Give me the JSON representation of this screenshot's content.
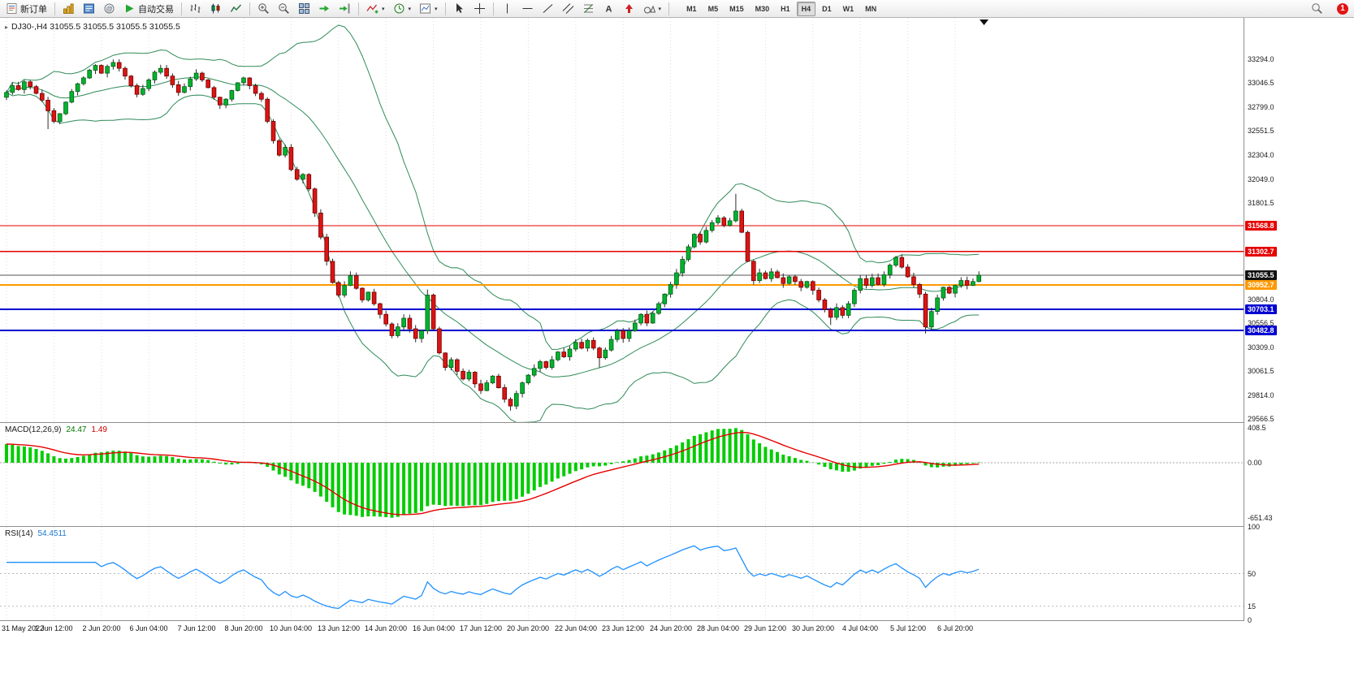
{
  "toolbar": {
    "new_order_label": "新订单",
    "auto_trading_label": "自动交易",
    "timeframes": [
      "M1",
      "M5",
      "M15",
      "M30",
      "H1",
      "H4",
      "D1",
      "W1",
      "MN"
    ],
    "active_timeframe": "H4",
    "notification_count": "1"
  },
  "chart": {
    "title_text": "DJ30-,H4 31055.5 31055.5 31055.5 31055.5",
    "price_axis_labels": [
      "33294.0",
      "33046.5",
      "32799.0",
      "32551.5",
      "32304.0",
      "32049.0",
      "31801.5",
      "30804.0",
      "30556.5",
      "30309.0",
      "30061.5",
      "29814.0",
      "29566.5"
    ],
    "h_lines": [
      {
        "price": 31568.8,
        "label": "31568.8",
        "type": "red",
        "width": 1.4
      },
      {
        "price": 31302.7,
        "label": "31302.7",
        "type": "red",
        "width": 1.4
      },
      {
        "price": 31055.5,
        "label": "31055.5",
        "type": "current",
        "width": 1
      },
      {
        "price": 30952.7,
        "label": "30952.7",
        "type": "orange",
        "width": 2
      },
      {
        "price": 30703.1,
        "label": "30703.1",
        "type": "blue",
        "width": 2
      },
      {
        "price": 30482.8,
        "label": "30482.8",
        "type": "blue",
        "width": 2
      }
    ],
    "time_axis": [
      {
        "bar": 0,
        "label": "31 May 2022"
      },
      {
        "bar": 8,
        "label": "1 Jun 12:00"
      },
      {
        "bar": 16,
        "label": "2 Jun 20:00"
      },
      {
        "bar": 24,
        "label": "6 Jun 04:00"
      },
      {
        "bar": 32,
        "label": "7 Jun 12:00"
      },
      {
        "bar": 40,
        "label": "8 Jun 20:00"
      },
      {
        "bar": 48,
        "label": "10 Jun 04:00"
      },
      {
        "bar": 56,
        "label": "13 Jun 12:00"
      },
      {
        "bar": 64,
        "label": "14 Jun 20:00"
      },
      {
        "bar": 72,
        "label": "16 Jun 04:00"
      },
      {
        "bar": 80,
        "label": "17 Jun 12:00"
      },
      {
        "bar": 88,
        "label": "20 Jun 20:00"
      },
      {
        "bar": 96,
        "label": "22 Jun 04:00"
      },
      {
        "bar": 104,
        "label": "23 Jun 12:00"
      },
      {
        "bar": 112,
        "label": "24 Jun 20:00"
      },
      {
        "bar": 120,
        "label": "28 Jun 04:00"
      },
      {
        "bar": 128,
        "label": "29 Jun 12:00"
      },
      {
        "bar": 136,
        "label": "30 Jun 20:00"
      },
      {
        "bar": 144,
        "label": "4 Jul 04:00"
      },
      {
        "bar": 152,
        "label": "5 Jul 12:00"
      },
      {
        "bar": 160,
        "label": "6 Jul 20:00"
      }
    ],
    "candles": {
      "first_open": 32900,
      "closes": [
        32950,
        33020,
        32980,
        33060,
        33010,
        32940,
        32870,
        32760,
        32650,
        32730,
        32850,
        32960,
        33040,
        33100,
        33180,
        33230,
        33150,
        33220,
        33260,
        33200,
        33120,
        33020,
        32930,
        32990,
        33080,
        33160,
        33200,
        33120,
        33030,
        32950,
        33010,
        33090,
        33150,
        33080,
        33000,
        32900,
        32820,
        32880,
        32970,
        33050,
        33100,
        33020,
        32940,
        32880,
        32650,
        32450,
        32300,
        32380,
        32150,
        32050,
        32100,
        31950,
        31700,
        31450,
        31200,
        30980,
        30850,
        30950,
        31050,
        30920,
        30800,
        30880,
        30760,
        30650,
        30550,
        30430,
        30520,
        30610,
        30500,
        30400,
        30480,
        30850,
        30500,
        30250,
        30100,
        30180,
        30060,
        29980,
        30050,
        29930,
        29860,
        29940,
        30010,
        29890,
        29770,
        29700,
        29830,
        29940,
        30020,
        30090,
        30160,
        30100,
        30180,
        30260,
        30210,
        30290,
        30360,
        30300,
        30380,
        30300,
        30200,
        30280,
        30390,
        30480,
        30400,
        30480,
        30560,
        30650,
        30560,
        30660,
        30760,
        30860,
        30960,
        31080,
        31220,
        31350,
        31480,
        31400,
        31520,
        31600,
        31650,
        31570,
        31620,
        31720,
        31500,
        31200,
        31000,
        31080,
        31020,
        31090,
        31030,
        30970,
        31040,
        30990,
        30930,
        30990,
        30900,
        30800,
        30700,
        30620,
        30720,
        30640,
        30760,
        30900,
        31020,
        30950,
        31030,
        30960,
        31060,
        31160,
        31240,
        31140,
        31040,
        30960,
        30860,
        30520,
        30680,
        30820,
        30930,
        30870,
        30950,
        31000,
        30950,
        30990,
        31055.5
      ],
      "wick_overrides": {
        "7": {
          "low": 32570
        },
        "18": {
          "high": 33292
        },
        "44": {
          "high": 32900
        },
        "71": {
          "high": 30908
        },
        "85": {
          "low": 29652
        },
        "100": {
          "low": 30100
        },
        "123": {
          "high": 31900
        },
        "139": {
          "low": 30540
        },
        "155": {
          "low": 30452
        }
      }
    },
    "colors": {
      "candle_up": "#00B42E",
      "candle_down": "#DC1414",
      "wick": "#2a2a2a",
      "bollinger": "#2E8B57",
      "grid": "#DEDEDE",
      "macd_histogram": "#00CC00",
      "macd_signal": "#E60000",
      "rsi_line": "#1E90FF",
      "line_red": "#E60000",
      "line_orange": "#FF9900",
      "line_blue": "#0000D2",
      "line_current": "#555555"
    }
  },
  "macd": {
    "label": {
      "name": "MACD(12,26,9)",
      "value_main": "24.47",
      "value_signal": "1.49"
    },
    "axis_labels": [
      {
        "text": "408.5",
        "value": 408.5
      },
      {
        "text": "0.00",
        "value": 0
      },
      {
        "text": "-651.43",
        "value": -651.43
      }
    ]
  },
  "rsi": {
    "label": {
      "name": "RSI(14)",
      "value": "54.4511"
    },
    "axis_labels": [
      {
        "text": "100",
        "value": 100
      },
      {
        "text": "50",
        "value": 50
      },
      {
        "text": "15",
        "value": 15
      },
      {
        "text": "0",
        "value": 0
      }
    ],
    "levels": [
      50,
      15
    ]
  }
}
